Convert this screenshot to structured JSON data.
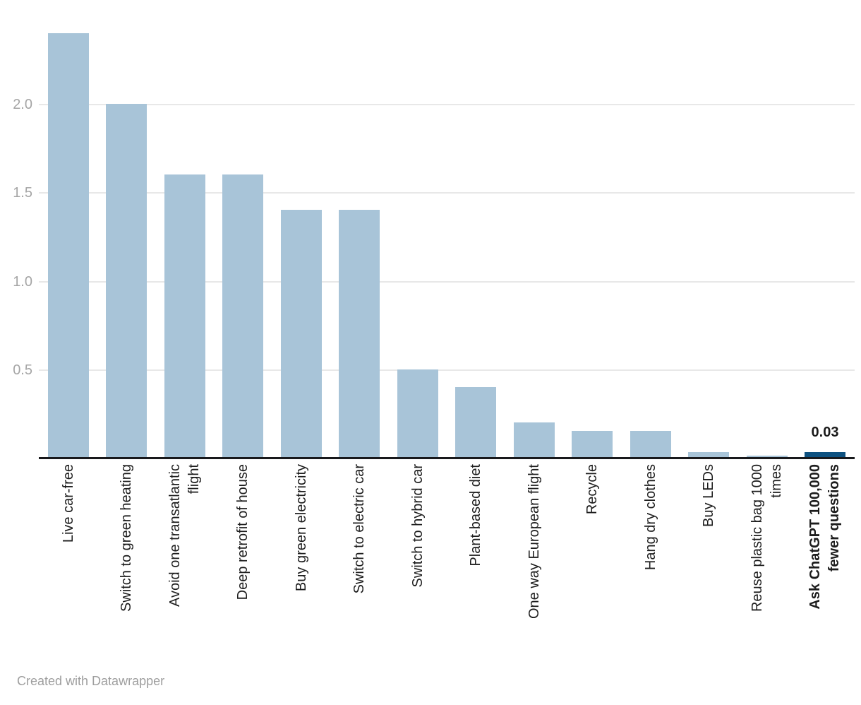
{
  "chart_data": {
    "type": "bar",
    "title": "",
    "xlabel": "",
    "ylabel": "",
    "categories": [
      "Live car-free",
      "Switch to green heating",
      "Avoid one transatlantic\nflight",
      "Deep retrofit of house",
      "Buy green electricity",
      "Switch to electric car",
      "Switch to hybrid car",
      "Plant-based diet",
      "One way European flight",
      "Recycle",
      "Hang dry clothes",
      "Buy LEDs",
      "Reuse plastic bag 1000\ntimes",
      "Ask ChatGPT 100,000\nfewer questions"
    ],
    "values": [
      2.4,
      2.0,
      1.6,
      1.6,
      1.4,
      1.4,
      0.5,
      0.4,
      0.2,
      0.15,
      0.15,
      0.03,
      0.01,
      0.03
    ],
    "highlight_index": 13,
    "data_labels": [
      {
        "index": 13,
        "text": "0.03"
      }
    ],
    "ylim": [
      0,
      2.4
    ],
    "yticks": [
      {
        "value": 0.5,
        "label": "0.5"
      },
      {
        "value": 1.0,
        "label": "1.0"
      },
      {
        "value": 1.5,
        "label": "1.5"
      },
      {
        "value": 2.0,
        "label": "2.0"
      }
    ],
    "grid": "horizontal",
    "legend": "none",
    "colors": {
      "bar": "#a8c4d8",
      "highlight_bar": "#0d5180",
      "gridline": "#e8e8e8",
      "axis_line": "#18191c",
      "ytick_text": "#a5a5a5",
      "xlabel_text": "#1d1d1d",
      "value_label_text": "#1a1a1a",
      "credit_text": "#9e9e9e"
    }
  },
  "footer": {
    "credit": "Created with Datawrapper"
  }
}
